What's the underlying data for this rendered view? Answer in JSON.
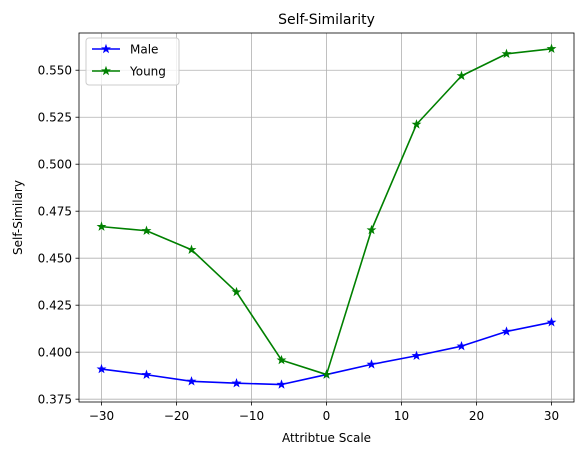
{
  "chart_data": {
    "type": "line",
    "title": "Self-Similarity",
    "xlabel": "Attribtue Scale",
    "ylabel": "Self-Similary",
    "xlim": [
      -33,
      33
    ],
    "ylim": [
      0.3735,
      0.5698
    ],
    "xticks": [
      -30,
      -20,
      -10,
      0,
      10,
      20,
      30
    ],
    "xtick_labels": [
      "−30",
      "−20",
      "−10",
      "0",
      "10",
      "20",
      "30"
    ],
    "yticks": [
      0.375,
      0.4,
      0.425,
      0.45,
      0.475,
      0.5,
      0.525,
      0.55
    ],
    "ytick_labels": [
      "0.375",
      "0.400",
      "0.425",
      "0.450",
      "0.475",
      "0.500",
      "0.525",
      "0.550"
    ],
    "grid": true,
    "legend_position": "top-left",
    "x": [
      -30,
      -24,
      -18,
      -12,
      -6,
      0,
      6,
      12,
      18,
      24,
      30
    ],
    "series": [
      {
        "name": "Male",
        "color": "#0000ff",
        "marker": "star",
        "values": [
          0.391,
          0.388,
          0.3845,
          0.3835,
          0.3828,
          0.3881,
          0.3935,
          0.3981,
          0.4032,
          0.411,
          0.4159
        ]
      },
      {
        "name": "Young",
        "color": "#008000",
        "marker": "star",
        "values": [
          0.4668,
          0.4646,
          0.4545,
          0.432,
          0.3958,
          0.3881,
          0.465,
          0.5212,
          0.547,
          0.5587,
          0.5614
        ]
      }
    ]
  }
}
